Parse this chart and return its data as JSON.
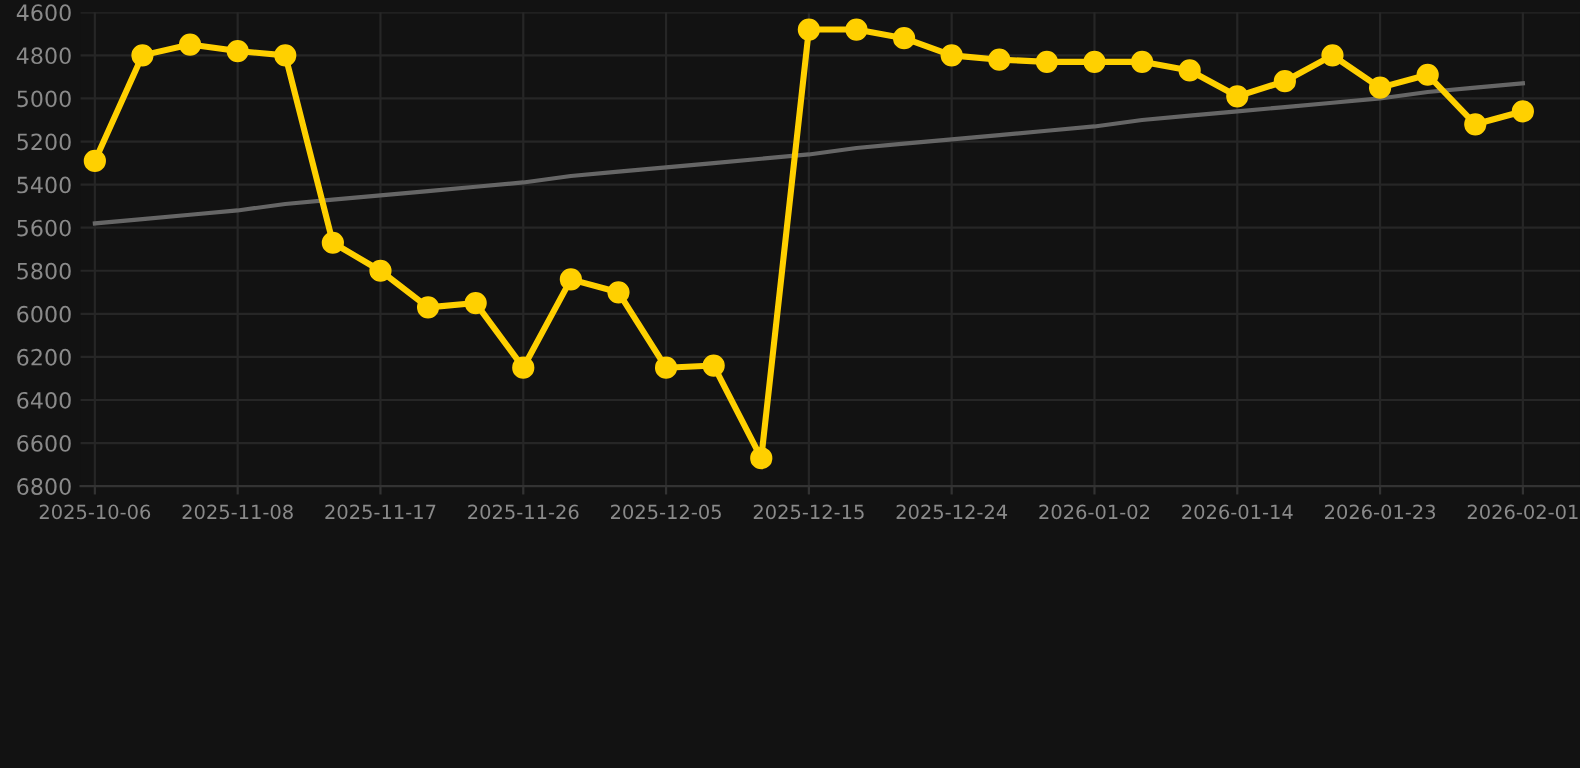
{
  "chart_data": {
    "type": "line",
    "categories": [
      "2025-10-06",
      null,
      null,
      "2025-11-08",
      null,
      null,
      "2025-11-17",
      null,
      null,
      "2025-11-26",
      null,
      null,
      "2025-12-05",
      null,
      null,
      "2025-12-15",
      null,
      null,
      "2025-12-24",
      null,
      null,
      "2026-01-02",
      null,
      null,
      "2026-01-14",
      null,
      null,
      "2026-01-23",
      null,
      null,
      "2026-02-01"
    ],
    "series": [
      {
        "color": "#ffd000",
        "marker": "circle",
        "values": [
          5290,
          4800,
          4750,
          4780,
          4800,
          5670,
          5800,
          5970,
          5950,
          6250,
          5840,
          5900,
          6250,
          6240,
          6670,
          4680,
          4680,
          4720,
          4800,
          4820,
          4830,
          4830,
          4830,
          4870,
          4990,
          4920,
          4800,
          4950,
          4890,
          5120,
          5060
        ]
      },
      {
        "type": "line",
        "color": "#666666",
        "marker": "none",
        "values": [
          5580,
          5560,
          5540,
          5520,
          5490,
          5470,
          5450,
          5430,
          5410,
          5390,
          5360,
          5340,
          5320,
          5300,
          5280,
          5260,
          5230,
          5210,
          5190,
          5170,
          5150,
          5130,
          5100,
          5080,
          5060,
          5040,
          5020,
          5000,
          4970,
          4950,
          4930
        ]
      }
    ],
    "ylim": [
      6800,
      4600
    ],
    "yticks": [
      4600,
      4800,
      5000,
      5200,
      5400,
      5600,
      5800,
      6000,
      6200,
      6400,
      6600,
      6800
    ],
    "grid": true
  }
}
